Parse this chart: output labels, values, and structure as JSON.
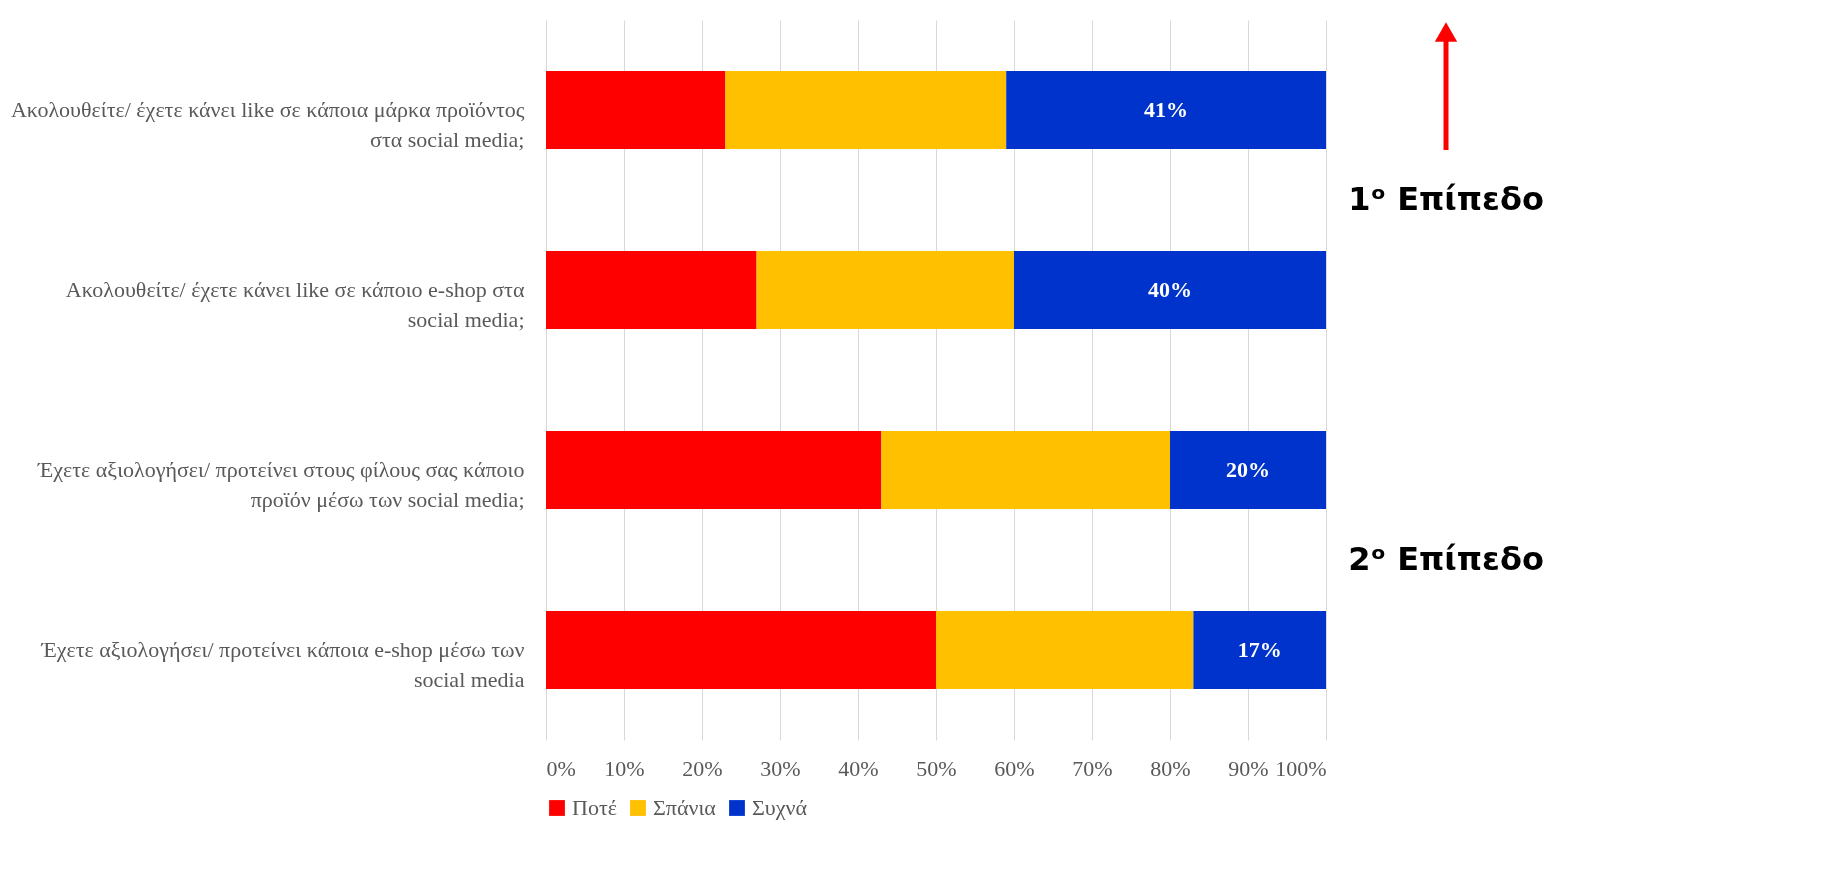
{
  "chart_data": {
    "type": "bar",
    "orientation": "horizontal",
    "stacked": true,
    "categories": [
      "Ακολουθείτε/ έχετε κάνει like σε κάποια μάρκα προϊόντος στα social media;",
      "Ακολουθείτε/ έχετε κάνει like σε κάποιο e-shop στα social media;",
      "Έχετε αξιολογήσει/ προτείνει στους φίλους σας κάποιο προϊόν μέσω των social media;",
      "Έχετε αξιολογήσει/ προτείνει κάποια e-shop μέσω των social media"
    ],
    "series": [
      {
        "name": "Ποτέ",
        "color": "#ff0000",
        "values": [
          23,
          27,
          43,
          50
        ]
      },
      {
        "name": "Σπάνια",
        "color": "#ffc000",
        "values": [
          36,
          33,
          37,
          33
        ]
      },
      {
        "name": "Συχνά",
        "color": "#0033cc",
        "values": [
          41,
          40,
          20,
          17
        ],
        "value_labels": [
          "41%",
          "40%",
          "20%",
          "17%"
        ]
      }
    ],
    "xlim": [
      0,
      100
    ],
    "xticks": [
      {
        "value": 0,
        "label": "0%"
      },
      {
        "value": 10,
        "label": "10%"
      },
      {
        "value": 20,
        "label": "20%"
      },
      {
        "value": 30,
        "label": "30%"
      },
      {
        "value": 40,
        "label": "40%"
      },
      {
        "value": 50,
        "label": "50%"
      },
      {
        "value": 60,
        "label": "60%"
      },
      {
        "value": 70,
        "label": "70%"
      },
      {
        "value": 80,
        "label": "80%"
      },
      {
        "value": 90,
        "label": "90%"
      },
      {
        "value": 100,
        "label": "100%"
      }
    ],
    "annotations": [
      "1ᵒ Επίπεδο",
      "2ᵒ Επίπεδο"
    ],
    "grid": "x",
    "legend": "bottom"
  }
}
